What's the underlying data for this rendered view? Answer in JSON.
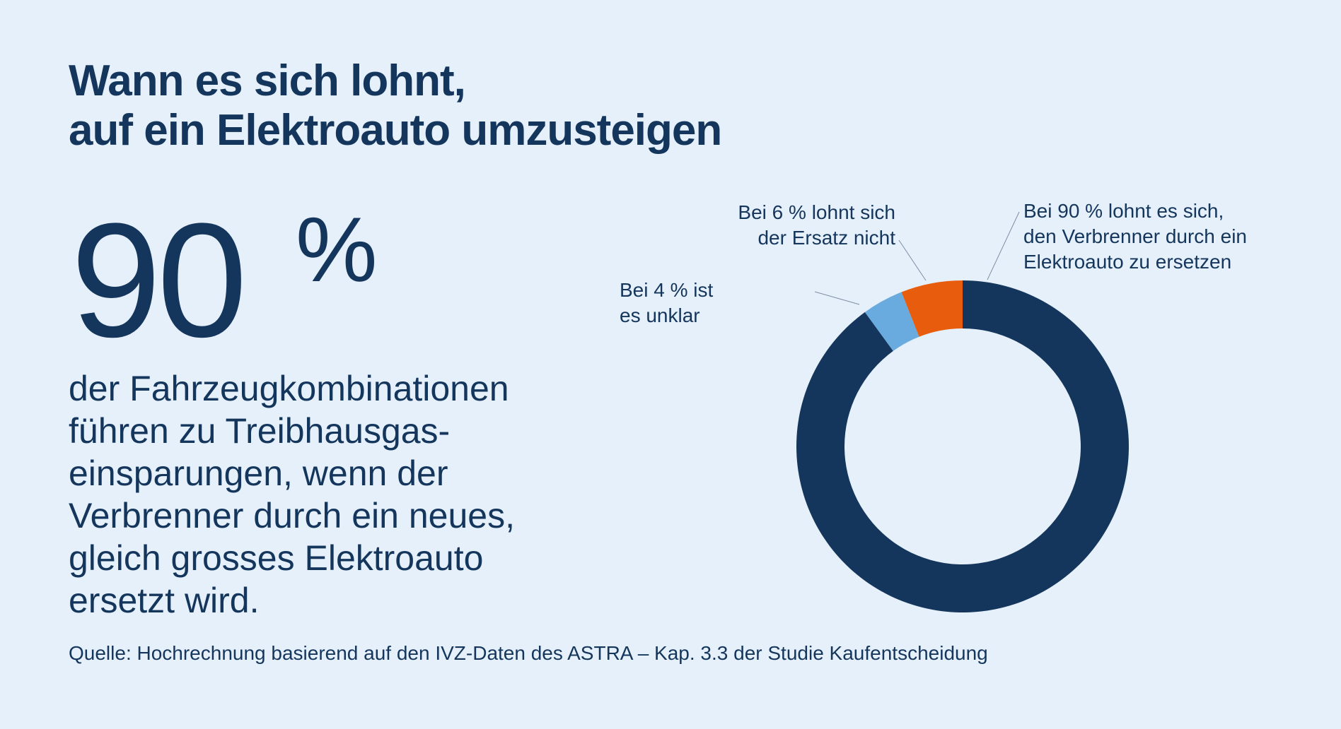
{
  "title": {
    "line1": "Wann es sich lohnt,",
    "line2": "auf ein Elektroauto umzusteigen"
  },
  "headline": {
    "number": "90",
    "unit": "%"
  },
  "description": "der Fahrzeugkombinationen führen zu Treibhausgas-einsparungen, wenn der Verbrenner durch ein neues, gleich grosses Elektroauto ersetzt wird.",
  "source": "Quelle: Hochrechnung basierend auf den IVZ-Daten des ASTRA – Kap. 3.3 der Studie Kaufentscheidung",
  "chart_data": {
    "type": "pie",
    "variant": "donut",
    "title": "",
    "start": "top, clockwise",
    "slices": [
      {
        "name": "lohnt-es-sich",
        "value": 90,
        "color": "#15365c",
        "label_lines": [
          "Bei 90 % lohnt es sich,",
          "den Verbrenner durch ein",
          "Elektroauto zu ersetzen"
        ]
      },
      {
        "name": "unklar",
        "value": 4,
        "color": "#6aabdf",
        "label_lines": [
          "Bei 4 % ist",
          "es unklar"
        ]
      },
      {
        "name": "lohnt-sich-nicht",
        "value": 6,
        "color": "#e85d0d",
        "label_lines": [
          "Bei 6 % lohnt sich",
          "der Ersatz nicht"
        ]
      }
    ]
  }
}
